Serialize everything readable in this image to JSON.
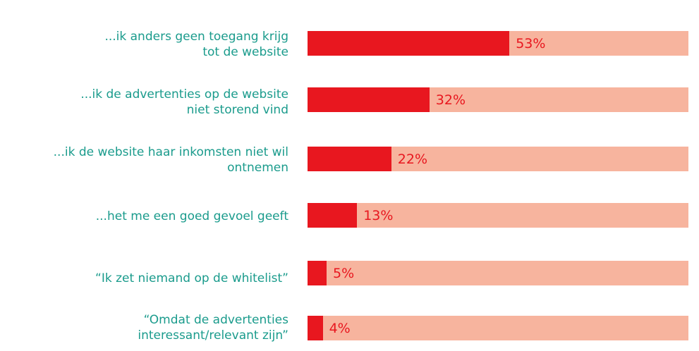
{
  "colors": {
    "label": "#1a9b8c",
    "bar": "#e8171f",
    "track": "#f7b49e",
    "value": "#e8171f"
  },
  "chart_data": {
    "type": "bar",
    "orientation": "horizontal",
    "categories": [
      "...ik anders geen toegang krijg\ntot de website",
      "...ik de advertenties op de website\nniet storend vind",
      "...ik de website haar inkomsten niet wil\nontnemen",
      "...het me een goed gevoel geeft",
      "“Ik zet niemand op de whitelist”",
      "“Omdat de advertenties\ninteressant/relevant zijn”"
    ],
    "values": [
      53,
      32,
      22,
      13,
      5,
      4
    ],
    "value_labels": [
      "53%",
      "32%",
      "22%",
      "13%",
      "5%",
      "4%"
    ],
    "xlim": [
      0,
      100
    ],
    "grid": false,
    "legend": "none"
  }
}
